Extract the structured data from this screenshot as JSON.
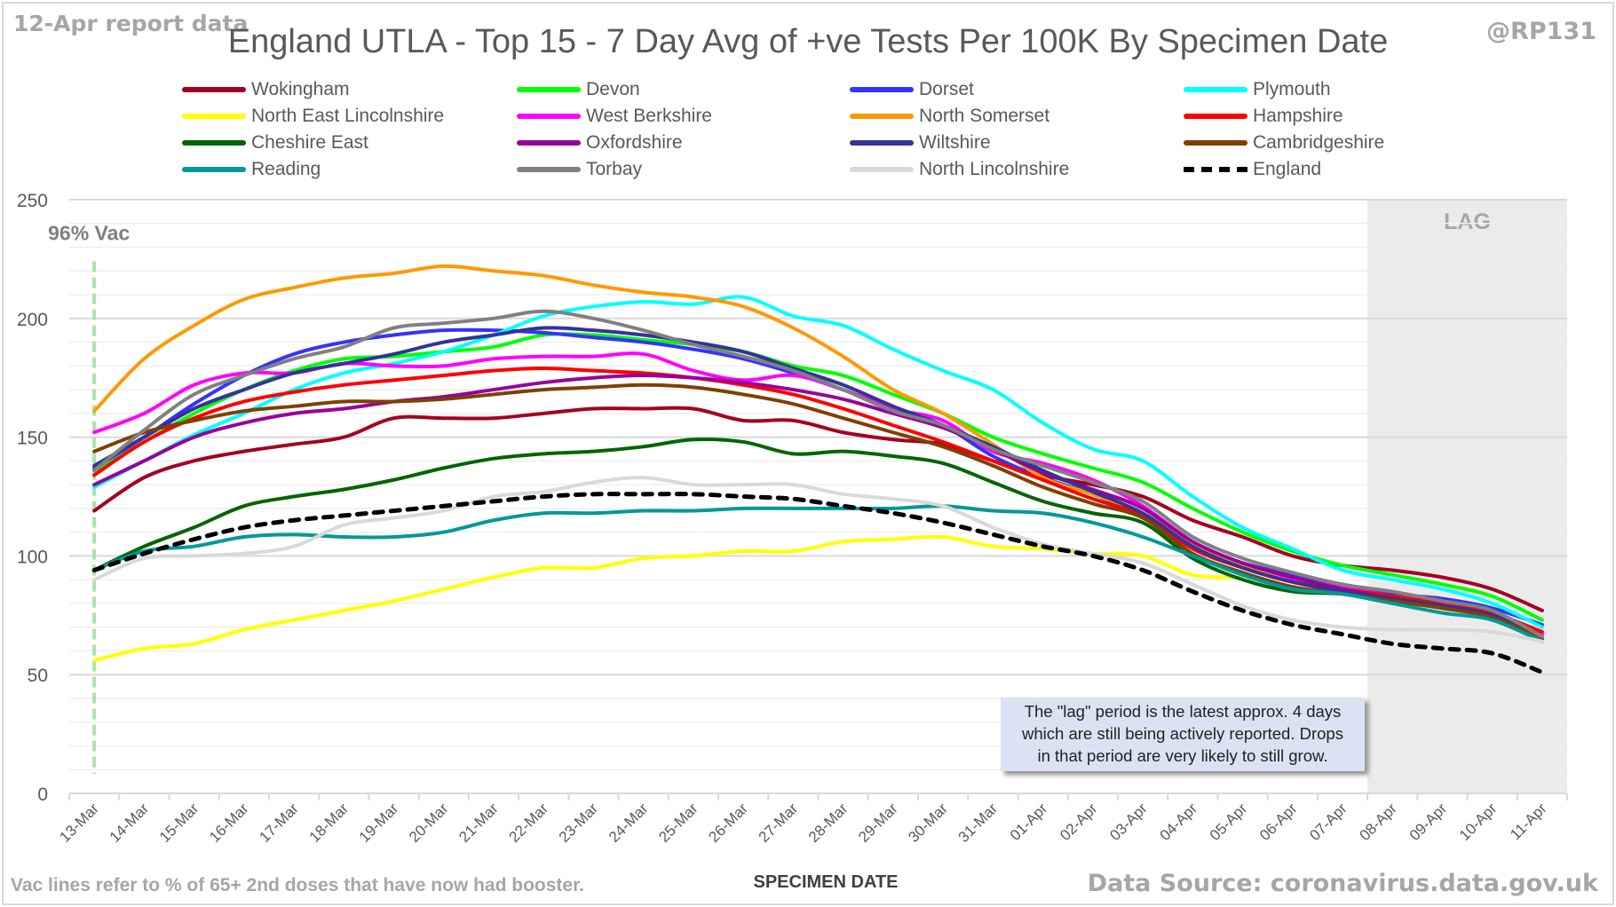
{
  "header": {
    "report_date": "12-Apr report data",
    "handle": "@RP131"
  },
  "footer": {
    "vac_note": "Vac lines refer to % of 65+ 2nd doses that have now had booster.",
    "source": "Data Source: coronavirus.data.gov.uk"
  },
  "annotations": {
    "vac_label": "96% Vac",
    "lag_label": "LAG",
    "lag_note": [
      "The \"lag\" period is the latest approx. 4 days",
      "which are still being actively reported.  Drops",
      "in that period are very likely to still grow."
    ]
  },
  "chart_data": {
    "type": "line",
    "title": "England UTLA - Top 15 - 7 Day Avg of +ve Tests Per 100K By Specimen Date",
    "xlabel": "SPECIMEN DATE",
    "ylabel": "",
    "ylim": [
      0,
      250
    ],
    "yticks": [
      0,
      50,
      100,
      150,
      200,
      250
    ],
    "grid": true,
    "legend_position": "top",
    "vac_line_category": "13-Mar",
    "lag_start_category": "08-Apr",
    "categories": [
      "13-Mar",
      "14-Mar",
      "15-Mar",
      "16-Mar",
      "17-Mar",
      "18-Mar",
      "19-Mar",
      "20-Mar",
      "21-Mar",
      "22-Mar",
      "23-Mar",
      "24-Mar",
      "25-Mar",
      "26-Mar",
      "27-Mar",
      "28-Mar",
      "29-Mar",
      "30-Mar",
      "31-Mar",
      "01-Apr",
      "02-Apr",
      "03-Apr",
      "04-Apr",
      "05-Apr",
      "06-Apr",
      "07-Apr",
      "08-Apr",
      "09-Apr",
      "10-Apr",
      "11-Apr"
    ],
    "series": [
      {
        "name": "Wokingham",
        "color": "#a50021",
        "dashed": false,
        "values": [
          119,
          133,
          140,
          144,
          147,
          150,
          158,
          158,
          158,
          160,
          162,
          162,
          162,
          157,
          157,
          152,
          149,
          147,
          140,
          134,
          130,
          125,
          115,
          108,
          100,
          96,
          94,
          91,
          86,
          77
        ]
      },
      {
        "name": "Devon",
        "color": "#00ff00",
        "dashed": false,
        "values": [
          136,
          148,
          160,
          170,
          178,
          183,
          184,
          186,
          188,
          193,
          193,
          191,
          189,
          186,
          180,
          176,
          168,
          160,
          150,
          143,
          137,
          131,
          120,
          110,
          102,
          96,
          92,
          88,
          83,
          73
        ]
      },
      {
        "name": "Dorset",
        "color": "#3333ff",
        "dashed": false,
        "values": [
          137,
          150,
          164,
          176,
          185,
          190,
          193,
          195,
          195,
          194,
          192,
          190,
          187,
          183,
          177,
          170,
          162,
          155,
          142,
          133,
          126,
          117,
          104,
          97,
          92,
          88,
          84,
          82,
          78,
          71
        ]
      },
      {
        "name": "Plymouth",
        "color": "#00ffff",
        "dashed": false,
        "values": [
          129,
          140,
          151,
          160,
          170,
          177,
          181,
          186,
          193,
          201,
          205,
          207,
          206,
          209,
          201,
          197,
          187,
          178,
          170,
          156,
          145,
          140,
          125,
          112,
          103,
          94,
          90,
          86,
          80,
          70
        ]
      },
      {
        "name": "North East Lincolnshire",
        "color": "#ffff00",
        "dashed": false,
        "values": [
          56,
          61,
          63,
          69,
          73,
          77,
          81,
          86,
          91,
          95,
          95,
          99,
          100,
          102,
          102,
          106,
          107,
          108,
          104,
          103,
          101,
          100,
          92,
          91,
          null,
          null,
          null,
          null,
          null,
          null
        ]
      },
      {
        "name": "West Berkshire",
        "color": "#ff00ff",
        "dashed": false,
        "values": [
          152,
          160,
          172,
          177,
          177,
          181,
          180,
          180,
          183,
          184,
          184,
          185,
          178,
          174,
          176,
          170,
          162,
          157,
          144,
          139,
          132,
          121,
          106,
          96,
          90,
          87,
          83,
          81,
          76,
          67
        ]
      },
      {
        "name": "North Somerset",
        "color": "#ff9900",
        "dashed": false,
        "values": [
          161,
          183,
          197,
          208,
          213,
          217,
          219,
          222,
          220,
          218,
          214,
          211,
          209,
          205,
          196,
          184,
          170,
          160,
          147,
          133,
          126,
          118,
          105,
          96,
          89,
          85,
          83,
          80,
          75,
          66
        ]
      },
      {
        "name": "Hampshire",
        "color": "#ff0000",
        "dashed": false,
        "values": [
          134,
          148,
          158,
          165,
          169,
          172,
          174,
          176,
          178,
          179,
          178,
          177,
          175,
          172,
          168,
          162,
          155,
          148,
          140,
          132,
          124,
          117,
          103,
          95,
          89,
          86,
          83,
          80,
          76,
          68
        ]
      },
      {
        "name": "Cheshire East",
        "color": "#006600",
        "dashed": false,
        "values": [
          94,
          104,
          112,
          121,
          125,
          128,
          132,
          137,
          141,
          143,
          144,
          146,
          149,
          148,
          143,
          144,
          142,
          139,
          131,
          123,
          118,
          114,
          99,
          90,
          85,
          84,
          81,
          78,
          74,
          64
        ]
      },
      {
        "name": "Oxfordshire",
        "color": "#990099",
        "dashed": false,
        "values": [
          130,
          140,
          150,
          156,
          160,
          162,
          165,
          167,
          170,
          173,
          175,
          176,
          175,
          173,
          170,
          166,
          160,
          154,
          145,
          135,
          128,
          120,
          106,
          97,
          91,
          86,
          82,
          79,
          75,
          65
        ]
      },
      {
        "name": "Wiltshire",
        "color": "#333399",
        "dashed": false,
        "values": [
          138,
          150,
          162,
          170,
          177,
          181,
          185,
          190,
          193,
          196,
          195,
          193,
          190,
          186,
          179,
          172,
          163,
          155,
          146,
          136,
          127,
          118,
          104,
          95,
          89,
          85,
          82,
          79,
          75,
          66
        ]
      },
      {
        "name": "Cambridgeshire",
        "color": "#804000",
        "dashed": false,
        "values": [
          144,
          152,
          157,
          161,
          163,
          165,
          165,
          166,
          168,
          170,
          171,
          172,
          171,
          168,
          164,
          158,
          152,
          146,
          138,
          129,
          122,
          116,
          101,
          93,
          87,
          84,
          81,
          78,
          74,
          65
        ]
      },
      {
        "name": "Reading",
        "color": "#009999",
        "dashed": false,
        "values": [
          94,
          102,
          104,
          108,
          109,
          108,
          108,
          110,
          115,
          118,
          118,
          119,
          119,
          120,
          120,
          120,
          120,
          121,
          119,
          118,
          114,
          108,
          100,
          92,
          86,
          84,
          80,
          76,
          73,
          64
        ]
      },
      {
        "name": "Torbay",
        "color": "#808080",
        "dashed": false,
        "values": [
          136,
          153,
          168,
          176,
          183,
          188,
          196,
          198,
          200,
          203,
          200,
          195,
          189,
          184,
          178,
          170,
          161,
          155,
          145,
          138,
          131,
          123,
          108,
          99,
          93,
          88,
          85,
          81,
          77,
          66
        ]
      },
      {
        "name": "North Lincolnshire",
        "color": "#d9d9d9",
        "dashed": false,
        "values": [
          90,
          99,
          100,
          101,
          104,
          113,
          116,
          119,
          125,
          127,
          131,
          133,
          130,
          130,
          130,
          126,
          124,
          121,
          112,
          105,
          101,
          97,
          88,
          79,
          73,
          70,
          69,
          69,
          68,
          64
        ]
      },
      {
        "name": "England",
        "color": "#000000",
        "dashed": true,
        "values": [
          94,
          101,
          107,
          112,
          115,
          117,
          119,
          121,
          123,
          125,
          126,
          126,
          126,
          125,
          124,
          121,
          118,
          114,
          109,
          104,
          100,
          94,
          85,
          77,
          71,
          67,
          63,
          61,
          59,
          51
        ]
      }
    ]
  }
}
